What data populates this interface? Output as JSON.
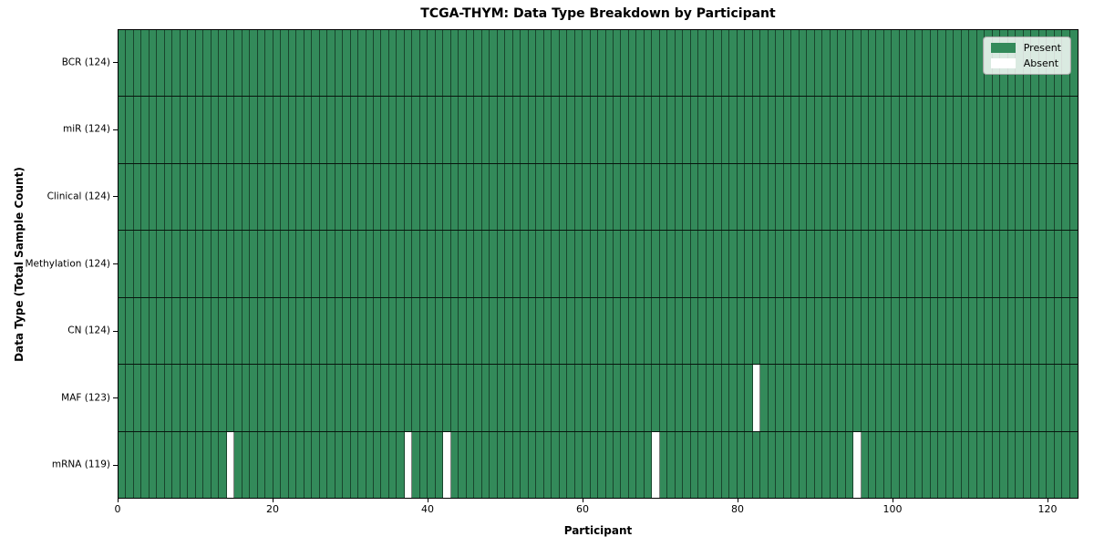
{
  "figure": {
    "background": "#ffffff"
  },
  "chart_data": {
    "type": "heatmap",
    "title": "TCGA-THYM: Data Type Breakdown by Participant",
    "xlabel": "Participant",
    "ylabel": "Data Type (Total Sample Count)",
    "x_ticks": [
      0,
      20,
      40,
      60,
      80,
      100,
      120
    ],
    "xlim": [
      0,
      124
    ],
    "n_participants": 124,
    "rows": [
      {
        "name": "BCR",
        "label": "BCR (124)",
        "present_count": 124,
        "absent_indices": []
      },
      {
        "name": "miR",
        "label": "miR (124)",
        "present_count": 124,
        "absent_indices": []
      },
      {
        "name": "Clinical",
        "label": "Clinical (124)",
        "present_count": 124,
        "absent_indices": []
      },
      {
        "name": "Methylation",
        "label": "Methylation (124)",
        "present_count": 124,
        "absent_indices": []
      },
      {
        "name": "CN",
        "label": "CN (124)",
        "present_count": 124,
        "absent_indices": []
      },
      {
        "name": "MAF",
        "label": "MAF (123)",
        "present_count": 123,
        "absent_indices": [
          82
        ]
      },
      {
        "name": "mRNA",
        "label": "mRNA (119)",
        "present_count": 119,
        "absent_indices": [
          14,
          37,
          42,
          69,
          95
        ]
      }
    ],
    "legend": {
      "position": "upper-right",
      "entries": [
        {
          "name": "present",
          "label": "Present",
          "color": "#338a5a"
        },
        {
          "name": "absent",
          "label": "Absent",
          "color": "#ffffff"
        }
      ]
    },
    "colors": {
      "present": "#338a5a",
      "absent": "#ffffff",
      "cell_line": "rgba(0,0,0,0.5)",
      "row_line": "rgba(0,0,0,0.85)",
      "frame": "#000000"
    },
    "grid": "cell-borders",
    "legend_position": "upper-right"
  }
}
